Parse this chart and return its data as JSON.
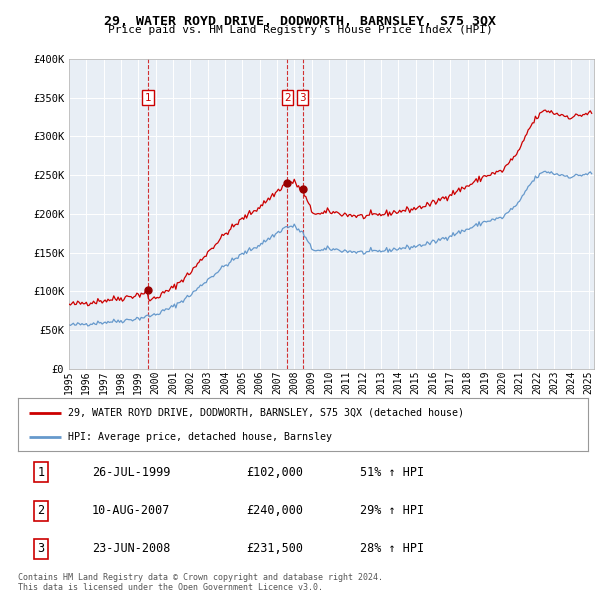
{
  "title": "29, WATER ROYD DRIVE, DODWORTH, BARNSLEY, S75 3QX",
  "subtitle": "Price paid vs. HM Land Registry's House Price Index (HPI)",
  "legend_label_red": "29, WATER ROYD DRIVE, DODWORTH, BARNSLEY, S75 3QX (detached house)",
  "legend_label_blue": "HPI: Average price, detached house, Barnsley",
  "footer1": "Contains HM Land Registry data © Crown copyright and database right 2024.",
  "footer2": "This data is licensed under the Open Government Licence v3.0.",
  "transactions": [
    {
      "num": "1",
      "date": "26-JUL-1999",
      "price": "£102,000",
      "pct": "51% ↑ HPI",
      "year": 1999.57
    },
    {
      "num": "2",
      "date": "10-AUG-2007",
      "price": "£240,000",
      "pct": "29% ↑ HPI",
      "year": 2007.61
    },
    {
      "num": "3",
      "date": "23-JUN-2008",
      "price": "£231,500",
      "pct": "28% ↑ HPI",
      "year": 2008.48
    }
  ],
  "sale_prices": [
    102000,
    240000,
    231500
  ],
  "ylim": [
    0,
    400000
  ],
  "yticks": [
    0,
    50000,
    100000,
    150000,
    200000,
    250000,
    300000,
    350000,
    400000
  ],
  "ytick_labels": [
    "£0",
    "£50K",
    "£100K",
    "£150K",
    "£200K",
    "£250K",
    "£300K",
    "£350K",
    "£400K"
  ],
  "red_color": "#cc0000",
  "blue_color": "#6699cc",
  "chart_bg_color": "#e8eef5",
  "background_color": "#ffffff",
  "grid_color": "#ffffff"
}
